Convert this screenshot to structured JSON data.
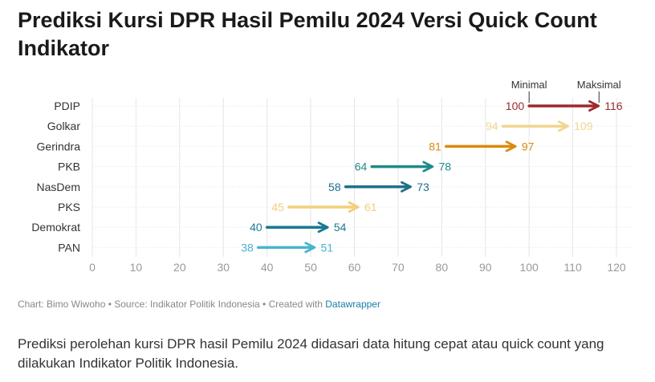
{
  "title": "Prediksi Kursi DPR Hasil Pemilu 2024 Versi Quick Count Indikator",
  "footer": {
    "chart_by": "Chart: Bimo Wiwoho",
    "separator": " • ",
    "source": "Source: Indikator Politik Indonesia",
    "created_with": "Created with ",
    "tool": "Datawrapper"
  },
  "description": "Prediksi perolehan kursi DPR hasil Pemilu 2024 didasari data hitung cepat atau quick count yang dilakukan Indikator Politik Indonesia.",
  "chart_data": {
    "type": "arrow",
    "legend": {
      "min_label": "Minimal",
      "max_label": "Maksimal"
    },
    "xlim": [
      0,
      120
    ],
    "xticks": [
      0,
      10,
      20,
      30,
      40,
      50,
      60,
      70,
      80,
      90,
      100,
      110,
      120
    ],
    "grid": true,
    "series": [
      {
        "party": "PDIP",
        "min": 100,
        "max": 116,
        "color": "#9e2a2a"
      },
      {
        "party": "Golkar",
        "min": 94,
        "max": 109,
        "color": "#f2d590"
      },
      {
        "party": "Gerindra",
        "min": 81,
        "max": 97,
        "color": "#d98b0f"
      },
      {
        "party": "PKB",
        "min": 64,
        "max": 78,
        "color": "#1f8a8a"
      },
      {
        "party": "NasDem",
        "min": 58,
        "max": 73,
        "color": "#1f6f8b"
      },
      {
        "party": "PKS",
        "min": 45,
        "max": 61,
        "color": "#f2cf7c"
      },
      {
        "party": "Demokrat",
        "min": 40,
        "max": 54,
        "color": "#1b7894"
      },
      {
        "party": "PAN",
        "min": 38,
        "max": 51,
        "color": "#4ab3cf"
      }
    ]
  }
}
